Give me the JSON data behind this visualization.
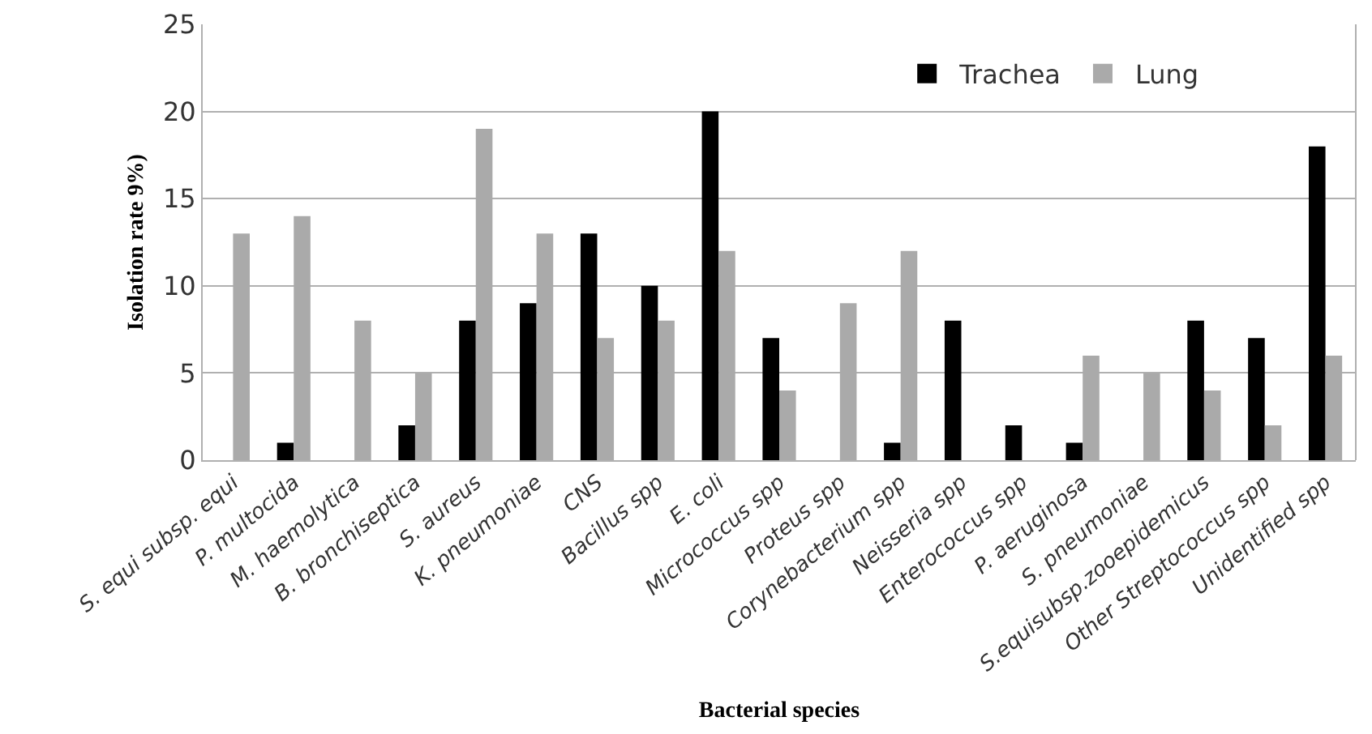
{
  "chart_data": {
    "type": "bar",
    "xlabel": "Bacterial species",
    "ylabel": "Isolation rate 9%)",
    "categories": [
      "S. equi subsp. equi",
      "P. multocida",
      "M. haemolytica",
      "B. bronchiseptica",
      "S. aureus",
      "K. pneumoniae",
      "CNS",
      "Bacillus spp",
      "E. coli",
      "Micrococcus spp",
      "Proteus spp",
      "Corynebacterium spp",
      "Neisseria spp",
      "Enterococcus spp",
      "P. aeruginosa",
      "S. pneumoniae",
      "S.equisubsp.zooepidemicus",
      "Other Streptococcus spp",
      "Unidentified spp"
    ],
    "series": [
      {
        "name": "Trachea",
        "color": "#000000",
        "values": [
          0,
          1,
          0,
          2,
          8,
          9,
          13,
          10,
          20,
          7,
          0,
          1,
          8,
          2,
          1,
          0,
          8,
          7,
          18
        ]
      },
      {
        "name": "Lung",
        "color": "#aaaaaa",
        "values": [
          13,
          14,
          8,
          5,
          19,
          13,
          7,
          8,
          12,
          4,
          9,
          12,
          0,
          0,
          6,
          5,
          4,
          2,
          6
        ]
      }
    ],
    "ylim": [
      0,
      25
    ],
    "yticks": [
      0,
      5,
      10,
      15,
      20,
      25
    ],
    "grid": "y",
    "legend": "top right"
  }
}
